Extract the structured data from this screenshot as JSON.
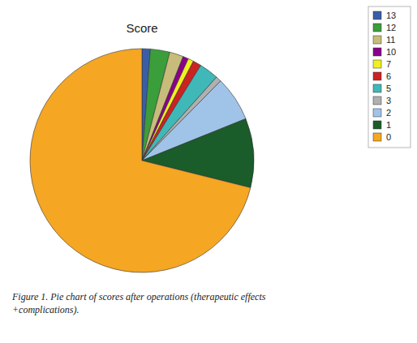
{
  "chart_data": {
    "type": "pie",
    "title": "Score",
    "caption": "Figure 1. Pie chart of scores after operations (therapeutic effects\n+complications).",
    "categories": [
      "13",
      "12",
      "11",
      "10",
      "7",
      "6",
      "5",
      "3",
      "2",
      "1",
      "0"
    ],
    "values": [
      1.2,
      2.8,
      2.0,
      0.8,
      0.8,
      1.2,
      2.8,
      0.8,
      6.5,
      10.0,
      71.1
    ],
    "colors": [
      "#3a5da8",
      "#3a9e3a",
      "#c8bc7a",
      "#8b008b",
      "#f0f020",
      "#cc2222",
      "#40b8b8",
      "#b0b0b0",
      "#a0c4e8",
      "#1a5c2a",
      "#f5a623"
    ],
    "legend": "upper right"
  }
}
